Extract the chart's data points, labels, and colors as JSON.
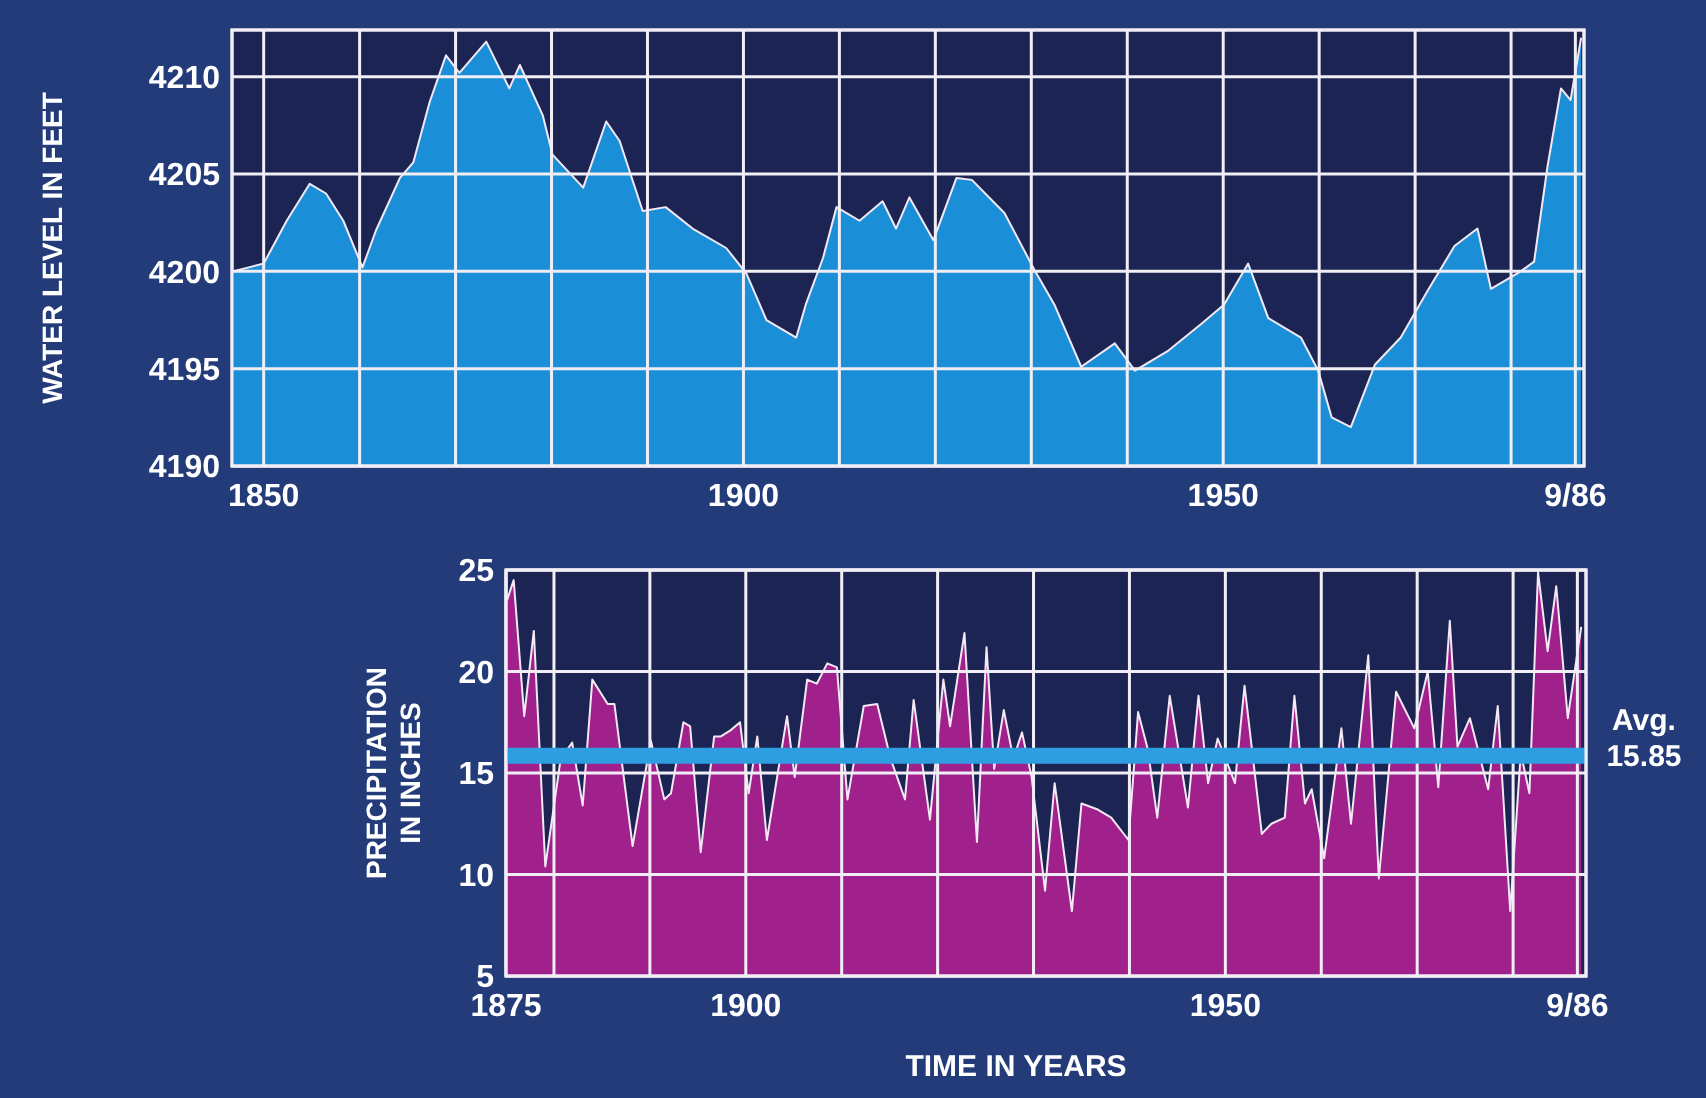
{
  "chart_data": [
    {
      "type": "area",
      "ylabel": "WATER LEVEL IN FEET",
      "color": "#1a8fd8",
      "grid": true,
      "x": [
        1846.8,
        1850,
        1852.4,
        1854.8,
        1856.5,
        1858.3,
        1860.3,
        1861.7,
        1864.2,
        1865.6,
        1867.3,
        1869,
        1870.4,
        1873.2,
        1875.6,
        1876.7,
        1879.1,
        1880.1,
        1883.3,
        1885.7,
        1887.1,
        1889.5,
        1891.9,
        1894.7,
        1898.2,
        1900.3,
        1902.4,
        1905.5,
        1906.5,
        1908.3,
        1909.7,
        1912.1,
        1914.5,
        1915.9,
        1917.3,
        1919.8,
        1922.2,
        1923.8,
        1927.2,
        1930.3,
        1932.4,
        1935.2,
        1938.7,
        1940.8,
        1944.2,
        1947.7,
        1950.1,
        1952.6,
        1954.7,
        1958.1,
        1959.9,
        1961.3,
        1963.3,
        1965.8,
        1968.5,
        1971.3,
        1974.1,
        1976.5,
        1977.9,
        1981,
        1982.4,
        1983.8,
        1985.2,
        1986.2,
        1987.3
      ],
      "values": [
        4200,
        4200.4,
        4202.6,
        4204.5,
        4204,
        4202.6,
        4200.2,
        4202.1,
        4204.8,
        4205.6,
        4208.7,
        4211.1,
        4210.2,
        4211.8,
        4209.4,
        4210.6,
        4208,
        4206,
        4204.3,
        4207.7,
        4206.7,
        4203.1,
        4203.3,
        4202.2,
        4201.2,
        4199.9,
        4197.5,
        4196.6,
        4198.3,
        4200.7,
        4203.3,
        4202.6,
        4203.6,
        4202.2,
        4203.8,
        4201.6,
        4204.8,
        4204.7,
        4203,
        4200.1,
        4198.3,
        4195.1,
        4196.3,
        4194.9,
        4195.9,
        4197.3,
        4198.3,
        4200.4,
        4197.6,
        4196.6,
        4194.9,
        4192.5,
        4192,
        4195.2,
        4196.6,
        4199,
        4201.3,
        4202.2,
        4199.1,
        4200,
        4200.5,
        4205.4,
        4209.4,
        4208.8,
        4212
      ],
      "xlim": [
        1846.7,
        1987.6
      ],
      "ylim": [
        4190,
        4212.4
      ],
      "xticks": [
        1850,
        {
          "value": 1860,
          "label": null
        },
        {
          "value": 1870,
          "label": null
        },
        {
          "value": 1880,
          "label": null
        },
        {
          "value": 1890,
          "label": null
        },
        1900,
        {
          "value": 1910,
          "label": null
        },
        {
          "value": 1920,
          "label": null
        },
        {
          "value": 1930,
          "label": null
        },
        {
          "value": 1940,
          "label": null
        },
        1950,
        {
          "value": 1960,
          "label": null
        },
        {
          "value": 1970,
          "label": null
        },
        {
          "value": 1980,
          "label": null
        },
        {
          "value": 1986.7,
          "label": "9/86"
        }
      ],
      "yticks": [
        4190,
        4195,
        4200,
        4205,
        4210
      ]
    },
    {
      "type": "area",
      "ylabel": "PRECIPITATION IN INCHES",
      "xlabel": "TIME IN YEARS",
      "color": "#a0208c",
      "grid": true,
      "x": [
        1875.1,
        1875.8,
        1876.9,
        1877.9,
        1879.1,
        1880.7,
        1881.9,
        1883,
        1884,
        1885.6,
        1886.3,
        1888.2,
        1890.1,
        1891.5,
        1892.2,
        1893.5,
        1894.2,
        1895.3,
        1896.7,
        1897.4,
        1898.4,
        1899.4,
        1900.3,
        1901.2,
        1902.2,
        1904.3,
        1905.1,
        1906.4,
        1907.4,
        1908.5,
        1909.5,
        1910.6,
        1912.3,
        1913.7,
        1915.1,
        1916.6,
        1917.5,
        1919.2,
        1920.6,
        1921.3,
        1922.8,
        1924.1,
        1925.1,
        1925.9,
        1926.9,
        1927.9,
        1928.8,
        1929.8,
        1931.2,
        1932.2,
        1934,
        1935,
        1936.7,
        1938.1,
        1939.9,
        1940.9,
        1941.9,
        1942.9,
        1944.2,
        1946.1,
        1947.2,
        1948.2,
        1949.2,
        1951,
        1952,
        1953.8,
        1954.8,
        1956.2,
        1957.2,
        1958.3,
        1959,
        1960.3,
        1962.1,
        1963.1,
        1964.9,
        1966,
        1967.8,
        1969.7,
        1971.1,
        1972.2,
        1973.4,
        1974.2,
        1975.5,
        1977.4,
        1978.4,
        1979.7,
        1980.8,
        1981.7,
        1982.6,
        1983.6,
        1984.5,
        1985.7,
        1987.1
      ],
      "values": [
        23.5,
        24.5,
        17.8,
        22,
        10.4,
        15.7,
        16.5,
        13.4,
        19.6,
        18.4,
        18.4,
        11.4,
        16.6,
        13.7,
        14,
        17.5,
        17.3,
        11.1,
        16.8,
        16.8,
        17.1,
        17.5,
        14,
        16.8,
        11.7,
        17.8,
        14.8,
        19.6,
        19.4,
        20.4,
        20.2,
        13.7,
        18.3,
        18.4,
        15.7,
        13.7,
        18.6,
        12.7,
        19.6,
        17.3,
        21.9,
        11.6,
        21.2,
        15.2,
        18.1,
        15.7,
        17,
        14.8,
        9.2,
        14.5,
        8.2,
        13.5,
        13.2,
        12.8,
        11.7,
        18,
        16.2,
        12.8,
        18.8,
        13.3,
        18.8,
        14.5,
        16.7,
        14.5,
        19.3,
        12,
        12.5,
        12.8,
        18.8,
        13.5,
        14.2,
        10.8,
        17.2,
        12.5,
        20.8,
        9.8,
        19,
        17.2,
        20,
        14.3,
        22.5,
        16.3,
        17.7,
        14.2,
        18.3,
        8.2,
        16,
        14,
        24.9,
        21,
        24.2,
        17.7,
        22.2
      ],
      "xlim": [
        1875,
        1987.6
      ],
      "ylim": [
        5,
        25
      ],
      "xticks": [
        1875,
        {
          "value": 1880,
          "label": null
        },
        {
          "value": 1890,
          "label": null
        },
        1900,
        {
          "value": 1910,
          "label": null
        },
        {
          "value": 1920,
          "label": null
        },
        {
          "value": 1930,
          "label": null
        },
        {
          "value": 1940,
          "label": null
        },
        1950,
        {
          "value": 1960,
          "label": null
        },
        {
          "value": 1970,
          "label": null
        },
        {
          "value": 1980,
          "label": null
        },
        {
          "value": 1986.7,
          "label": "9/86"
        }
      ],
      "yticks": [
        5,
        10,
        15,
        20,
        25
      ],
      "ref_lines": [
        {
          "axis": "y",
          "value": 15.85,
          "label": "Avg. 15.85",
          "color": "#2f9ee0"
        }
      ]
    }
  ]
}
